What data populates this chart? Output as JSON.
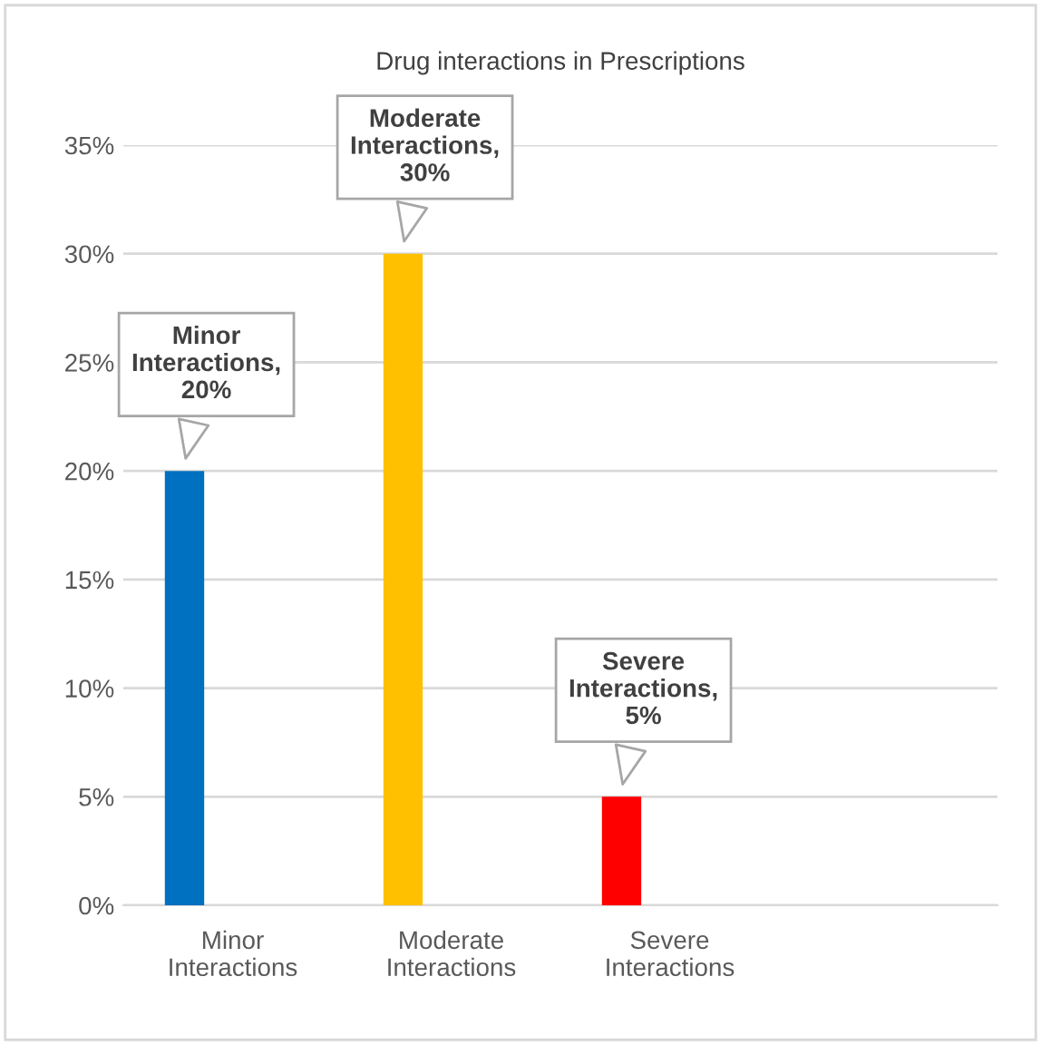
{
  "chart_data": {
    "type": "bar",
    "title": "Drug interactions in Prescriptions",
    "categories": [
      "Minor\nInteractions",
      "Moderate\nInteractions",
      "Severe\nInteractions"
    ],
    "values": [
      20,
      30,
      5
    ],
    "colors": [
      "#0070c0",
      "#ffc000",
      "#ff0000"
    ],
    "value_labels": [
      "Minor\nInteractions,\n20%",
      "Moderate\nInteractions,\n30%",
      "Severe\nInteractions,\n5%"
    ],
    "ylim": [
      0,
      35
    ],
    "yticks": [
      {
        "value": 0,
        "label": "0%"
      },
      {
        "value": 5,
        "label": "5%"
      },
      {
        "value": 10,
        "label": "10%"
      },
      {
        "value": 15,
        "label": "15%"
      },
      {
        "value": 20,
        "label": "20%"
      },
      {
        "value": 25,
        "label": "25%"
      },
      {
        "value": 30,
        "label": "30%"
      },
      {
        "value": 35,
        "label": "35%"
      }
    ],
    "grid": "y",
    "legend": false
  }
}
